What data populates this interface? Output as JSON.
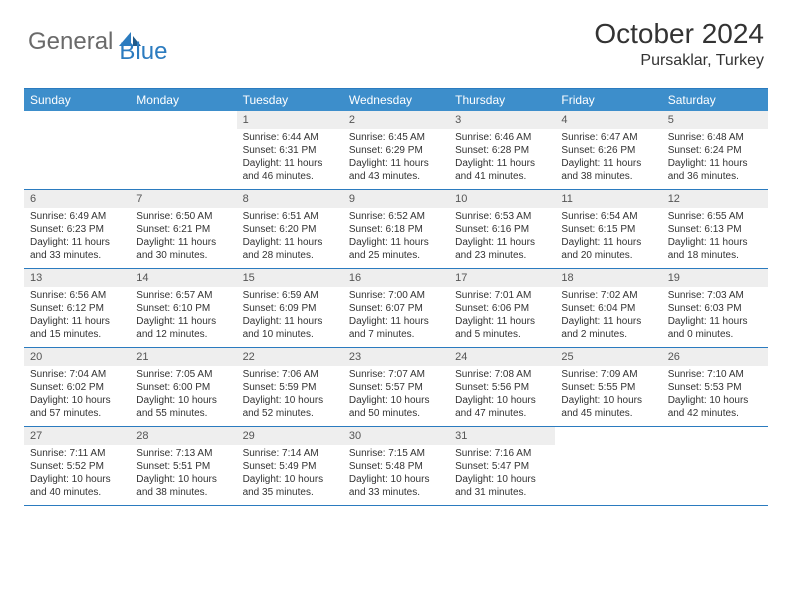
{
  "brand": {
    "name_a": "General",
    "name_b": "Blue"
  },
  "title": "October 2024",
  "location": "Pursaklar, Turkey",
  "colors": {
    "header_bg": "#3d8ecb",
    "border": "#2b7bbf",
    "daynum_bg": "#eeeeee",
    "text": "#333333"
  },
  "day_headers": [
    "Sunday",
    "Monday",
    "Tuesday",
    "Wednesday",
    "Thursday",
    "Friday",
    "Saturday"
  ],
  "weeks": [
    [
      {
        "n": "",
        "sr": "",
        "ss": "",
        "dl": ""
      },
      {
        "n": "",
        "sr": "",
        "ss": "",
        "dl": ""
      },
      {
        "n": "1",
        "sr": "Sunrise: 6:44 AM",
        "ss": "Sunset: 6:31 PM",
        "dl": "Daylight: 11 hours and 46 minutes."
      },
      {
        "n": "2",
        "sr": "Sunrise: 6:45 AM",
        "ss": "Sunset: 6:29 PM",
        "dl": "Daylight: 11 hours and 43 minutes."
      },
      {
        "n": "3",
        "sr": "Sunrise: 6:46 AM",
        "ss": "Sunset: 6:28 PM",
        "dl": "Daylight: 11 hours and 41 minutes."
      },
      {
        "n": "4",
        "sr": "Sunrise: 6:47 AM",
        "ss": "Sunset: 6:26 PM",
        "dl": "Daylight: 11 hours and 38 minutes."
      },
      {
        "n": "5",
        "sr": "Sunrise: 6:48 AM",
        "ss": "Sunset: 6:24 PM",
        "dl": "Daylight: 11 hours and 36 minutes."
      }
    ],
    [
      {
        "n": "6",
        "sr": "Sunrise: 6:49 AM",
        "ss": "Sunset: 6:23 PM",
        "dl": "Daylight: 11 hours and 33 minutes."
      },
      {
        "n": "7",
        "sr": "Sunrise: 6:50 AM",
        "ss": "Sunset: 6:21 PM",
        "dl": "Daylight: 11 hours and 30 minutes."
      },
      {
        "n": "8",
        "sr": "Sunrise: 6:51 AM",
        "ss": "Sunset: 6:20 PM",
        "dl": "Daylight: 11 hours and 28 minutes."
      },
      {
        "n": "9",
        "sr": "Sunrise: 6:52 AM",
        "ss": "Sunset: 6:18 PM",
        "dl": "Daylight: 11 hours and 25 minutes."
      },
      {
        "n": "10",
        "sr": "Sunrise: 6:53 AM",
        "ss": "Sunset: 6:16 PM",
        "dl": "Daylight: 11 hours and 23 minutes."
      },
      {
        "n": "11",
        "sr": "Sunrise: 6:54 AM",
        "ss": "Sunset: 6:15 PM",
        "dl": "Daylight: 11 hours and 20 minutes."
      },
      {
        "n": "12",
        "sr": "Sunrise: 6:55 AM",
        "ss": "Sunset: 6:13 PM",
        "dl": "Daylight: 11 hours and 18 minutes."
      }
    ],
    [
      {
        "n": "13",
        "sr": "Sunrise: 6:56 AM",
        "ss": "Sunset: 6:12 PM",
        "dl": "Daylight: 11 hours and 15 minutes."
      },
      {
        "n": "14",
        "sr": "Sunrise: 6:57 AM",
        "ss": "Sunset: 6:10 PM",
        "dl": "Daylight: 11 hours and 12 minutes."
      },
      {
        "n": "15",
        "sr": "Sunrise: 6:59 AM",
        "ss": "Sunset: 6:09 PM",
        "dl": "Daylight: 11 hours and 10 minutes."
      },
      {
        "n": "16",
        "sr": "Sunrise: 7:00 AM",
        "ss": "Sunset: 6:07 PM",
        "dl": "Daylight: 11 hours and 7 minutes."
      },
      {
        "n": "17",
        "sr": "Sunrise: 7:01 AM",
        "ss": "Sunset: 6:06 PM",
        "dl": "Daylight: 11 hours and 5 minutes."
      },
      {
        "n": "18",
        "sr": "Sunrise: 7:02 AM",
        "ss": "Sunset: 6:04 PM",
        "dl": "Daylight: 11 hours and 2 minutes."
      },
      {
        "n": "19",
        "sr": "Sunrise: 7:03 AM",
        "ss": "Sunset: 6:03 PM",
        "dl": "Daylight: 11 hours and 0 minutes."
      }
    ],
    [
      {
        "n": "20",
        "sr": "Sunrise: 7:04 AM",
        "ss": "Sunset: 6:02 PM",
        "dl": "Daylight: 10 hours and 57 minutes."
      },
      {
        "n": "21",
        "sr": "Sunrise: 7:05 AM",
        "ss": "Sunset: 6:00 PM",
        "dl": "Daylight: 10 hours and 55 minutes."
      },
      {
        "n": "22",
        "sr": "Sunrise: 7:06 AM",
        "ss": "Sunset: 5:59 PM",
        "dl": "Daylight: 10 hours and 52 minutes."
      },
      {
        "n": "23",
        "sr": "Sunrise: 7:07 AM",
        "ss": "Sunset: 5:57 PM",
        "dl": "Daylight: 10 hours and 50 minutes."
      },
      {
        "n": "24",
        "sr": "Sunrise: 7:08 AM",
        "ss": "Sunset: 5:56 PM",
        "dl": "Daylight: 10 hours and 47 minutes."
      },
      {
        "n": "25",
        "sr": "Sunrise: 7:09 AM",
        "ss": "Sunset: 5:55 PM",
        "dl": "Daylight: 10 hours and 45 minutes."
      },
      {
        "n": "26",
        "sr": "Sunrise: 7:10 AM",
        "ss": "Sunset: 5:53 PM",
        "dl": "Daylight: 10 hours and 42 minutes."
      }
    ],
    [
      {
        "n": "27",
        "sr": "Sunrise: 7:11 AM",
        "ss": "Sunset: 5:52 PM",
        "dl": "Daylight: 10 hours and 40 minutes."
      },
      {
        "n": "28",
        "sr": "Sunrise: 7:13 AM",
        "ss": "Sunset: 5:51 PM",
        "dl": "Daylight: 10 hours and 38 minutes."
      },
      {
        "n": "29",
        "sr": "Sunrise: 7:14 AM",
        "ss": "Sunset: 5:49 PM",
        "dl": "Daylight: 10 hours and 35 minutes."
      },
      {
        "n": "30",
        "sr": "Sunrise: 7:15 AM",
        "ss": "Sunset: 5:48 PM",
        "dl": "Daylight: 10 hours and 33 minutes."
      },
      {
        "n": "31",
        "sr": "Sunrise: 7:16 AM",
        "ss": "Sunset: 5:47 PM",
        "dl": "Daylight: 10 hours and 31 minutes."
      },
      {
        "n": "",
        "sr": "",
        "ss": "",
        "dl": ""
      },
      {
        "n": "",
        "sr": "",
        "ss": "",
        "dl": ""
      }
    ]
  ]
}
